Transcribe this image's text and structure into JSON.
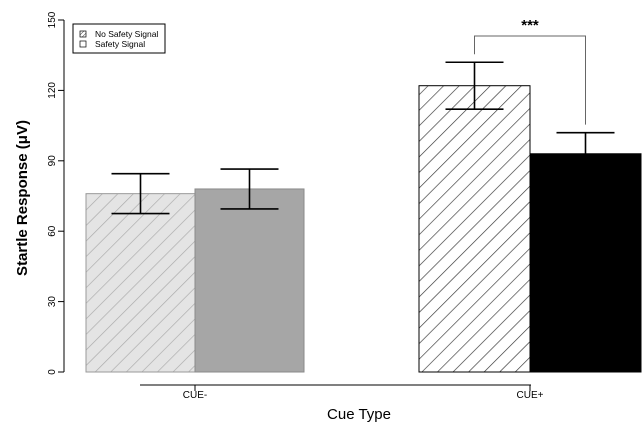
{
  "chart_data": {
    "type": "bar",
    "xlabel": "Cue Type",
    "ylabel": "Startle Response (μV)",
    "ylim": [
      0,
      150
    ],
    "yticks": [
      0,
      30,
      60,
      90,
      120,
      150
    ],
    "categories": [
      "CUE-",
      "CUE+"
    ],
    "series": [
      {
        "name": "No Safety Signal",
        "values": [
          76,
          122
        ],
        "error": [
          8.5,
          10
        ]
      },
      {
        "name": "Safety Signal",
        "values": [
          78,
          93
        ],
        "error": [
          8.5,
          9
        ]
      }
    ],
    "colors": {
      "cue_minus_no_safety": "#e4e4e4",
      "cue_minus_safety": "#a6a6a6",
      "cue_plus_no_safety": "#ffffff",
      "cue_plus_safety": "#000000"
    },
    "hatch": {
      "cue_minus_no_safety": "#a8a8a8",
      "cue_plus_no_safety": "#333333"
    },
    "legend_position": "top-left",
    "annotations": [
      {
        "text": "***",
        "between": [
          "CUE+ No Safety Signal",
          "CUE+ Safety Signal"
        ]
      }
    ],
    "grid": false
  }
}
